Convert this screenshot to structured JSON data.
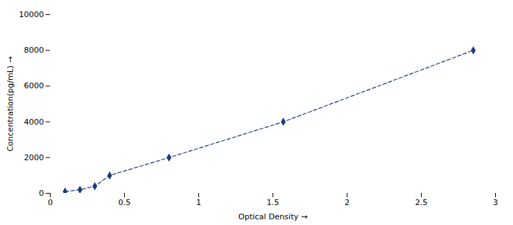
{
  "chart_data": {
    "type": "line",
    "x": [
      0.1,
      0.2,
      0.3,
      0.4,
      0.8,
      1.57,
      2.85
    ],
    "values": [
      100,
      200,
      400,
      1000,
      2000,
      4000,
      8000
    ],
    "color": "#1a3a7a",
    "marker": "diamond",
    "line_style": "dashed",
    "xlabel": "Optical Density",
    "ylabel": "Concentration(pg/mL)",
    "xlim": [
      0,
      3.0
    ],
    "ylim": [
      0,
      10000
    ],
    "xticks": [
      0,
      0.5,
      1,
      1.5,
      2,
      2.5,
      3
    ],
    "yticks": [
      0,
      2000,
      4000,
      6000,
      8000,
      10000
    ],
    "grid": false
  }
}
